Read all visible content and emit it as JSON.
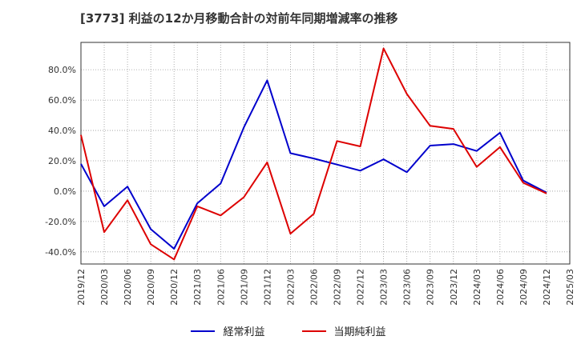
{
  "chart_data": {
    "type": "line",
    "title": "[3773]  利益の12か月移動合計の対前年同期増減率の推移",
    "categories": [
      "2019/12",
      "2020/03",
      "2020/06",
      "2020/09",
      "2020/12",
      "2021/03",
      "2021/06",
      "2021/09",
      "2021/12",
      "2022/03",
      "2022/06",
      "2022/09",
      "2022/12",
      "2023/03",
      "2023/06",
      "2023/09",
      "2023/12",
      "2024/03",
      "2024/06",
      "2024/09",
      "2024/12",
      "2025/03"
    ],
    "ylim": [
      -48,
      98
    ],
    "yticks": [
      -40,
      -20,
      0,
      20,
      40,
      60,
      80
    ],
    "ytick_labels": [
      "-40.0%",
      "-20.0%",
      "0.0%",
      "20.0%",
      "40.0%",
      "60.0%",
      "80.0%"
    ],
    "grid": true,
    "legend_position": "bottom",
    "series": [
      {
        "name": "経常利益",
        "color": "#0000cc",
        "values": [
          18,
          -10,
          3,
          -25,
          -38,
          -8,
          5,
          42,
          73,
          25,
          21.5,
          17.5,
          13.5,
          21,
          12.5,
          30,
          31,
          26.5,
          38.5,
          7,
          -1,
          null
        ]
      },
      {
        "name": "当期純利益",
        "color": "#dd0000",
        "values": [
          37,
          -27,
          -6,
          -35,
          -45,
          -10,
          -16,
          -4,
          19,
          -28,
          -15,
          33,
          29.5,
          94,
          64,
          43,
          41,
          16,
          29,
          5.5,
          -1.5,
          null
        ]
      }
    ]
  }
}
